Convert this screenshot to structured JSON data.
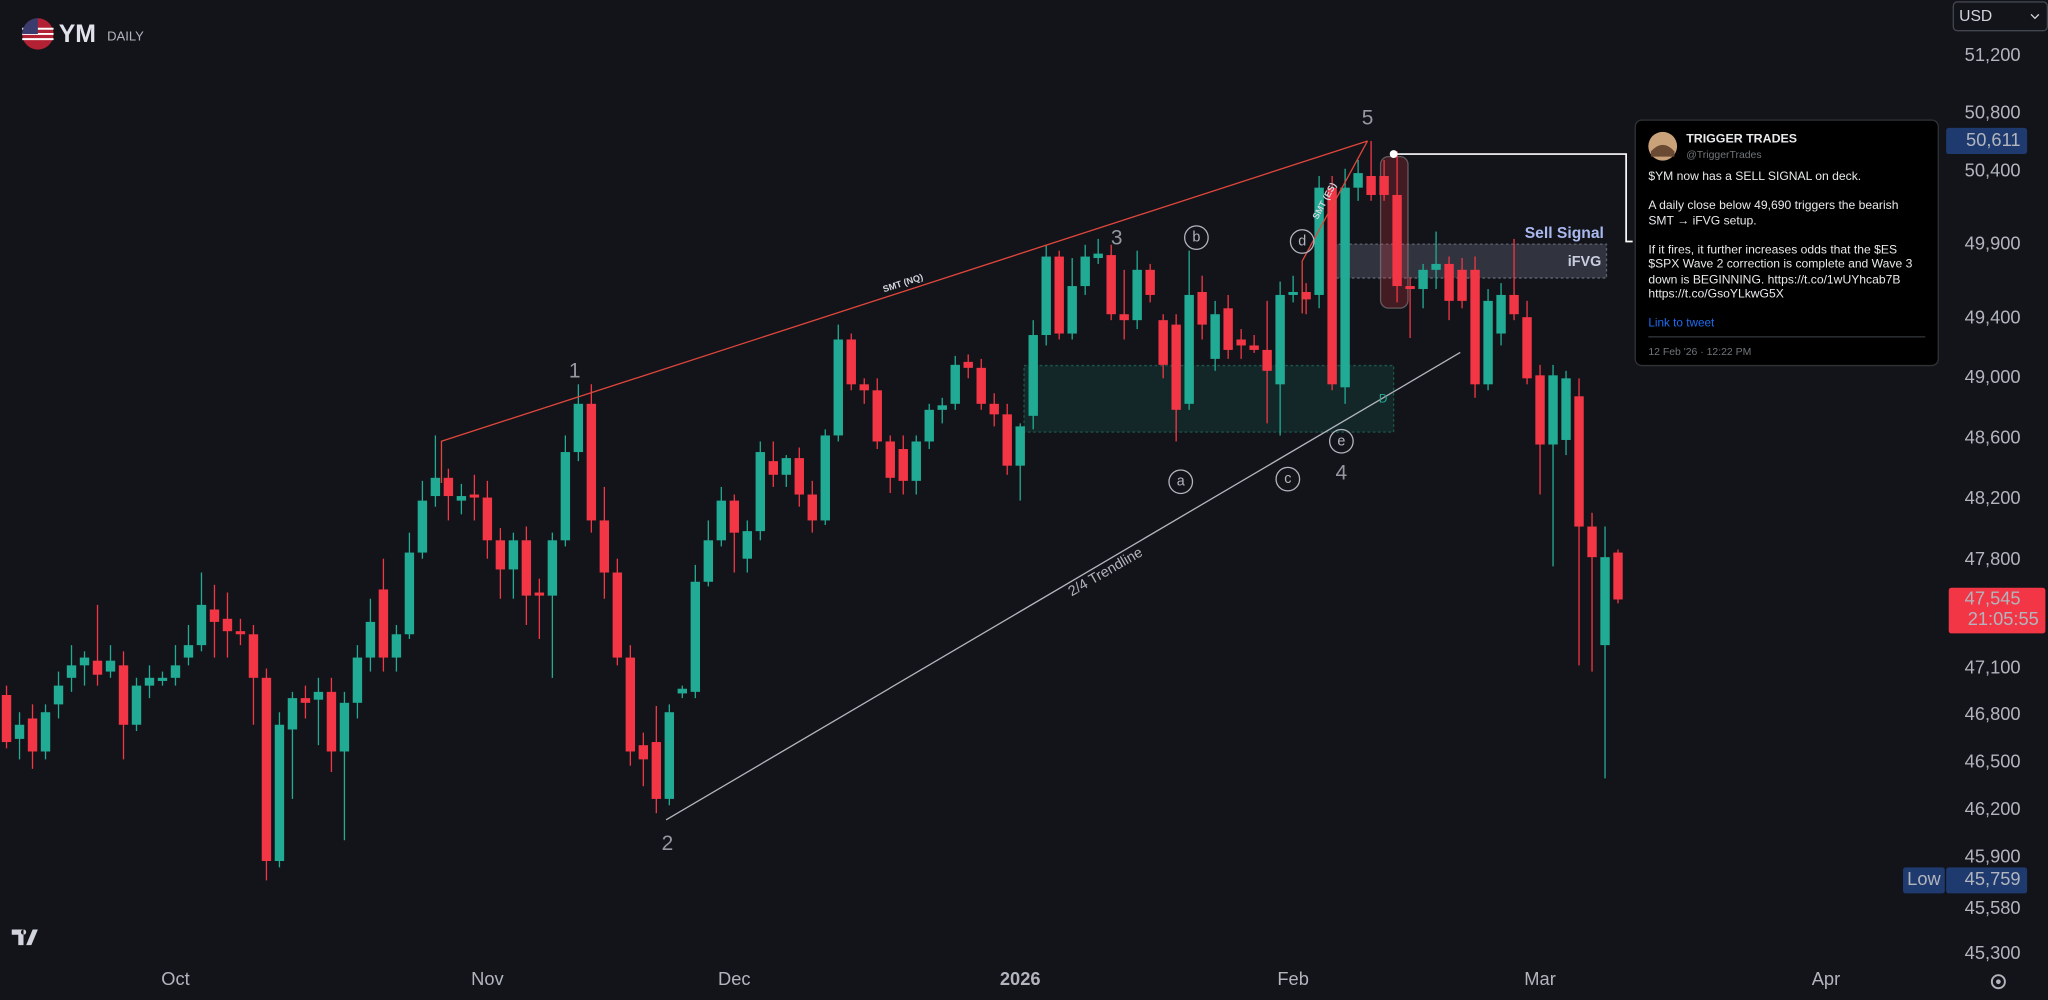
{
  "header": {
    "symbol": "YM",
    "interval": "DAILY",
    "currency": "USD"
  },
  "chart_data": {
    "type": "candlestick",
    "open": [
      46930,
      46650,
      46780,
      46570,
      46870,
      47040,
      47120,
      47150,
      47080,
      47120,
      46740,
      46990,
      47020,
      47040,
      47170,
      47250,
      47480,
      47420,
      47340,
      47320,
      47040,
      45880,
      46710,
      46910,
      46900,
      46950,
      46570,
      46880,
      47170,
      47610,
      47170,
      47320,
      47850,
      48220,
      48340,
      48190,
      48230,
      48210,
      47930,
      47740,
      47930,
      47590,
      47570,
      47930,
      48510,
      48830,
      48060,
      47720,
      47170,
      46610,
      46630,
      46270,
      46940,
      46950,
      47660,
      47930,
      48190,
      47810,
      47990,
      48450,
      48360,
      48470,
      48230,
      48060,
      48620,
      49260,
      48960,
      48920,
      48580,
      48530,
      48320,
      48580,
      48790,
      48830,
      49110,
      49070,
      48830,
      48760,
      48420,
      48750,
      49290,
      49820,
      49300,
      49620,
      49810,
      49830,
      49430,
      49390,
      49730,
      49390,
      49360,
      48830,
      49580,
      49130,
      49470,
      49260,
      49220,
      49190,
      48960,
      49560,
      49580,
      49560,
      50290,
      48940,
      50290,
      50370,
      50370,
      50240,
      49620,
      49600,
      49730,
      49770,
      49730,
      49730,
      48960,
      49300,
      49560,
      49410,
      49020,
      48560,
      48590,
      48880,
      48020,
      47250,
      47850
    ],
    "high": [
      46990,
      46820,
      46870,
      46870,
      47080,
      47250,
      47210,
      47510,
      47250,
      47210,
      47040,
      47120,
      47080,
      47250,
      47380,
      47720,
      47640,
      47590,
      47420,
      47380,
      47100,
      46820,
      46950,
      46990,
      47040,
      47040,
      46950,
      47250,
      47550,
      47810,
      47380,
      47980,
      48320,
      48620,
      48400,
      48300,
      48360,
      48320,
      48010,
      47980,
      48020,
      47680,
      47980,
      48620,
      48960,
      48960,
      48280,
      47810,
      47250,
      46690,
      46860,
      46870,
      46990,
      47770,
      48060,
      48280,
      48230,
      48060,
      48580,
      48580,
      48490,
      48540,
      48320,
      48660,
      49360,
      49300,
      49000,
      49000,
      48620,
      48620,
      48620,
      48830,
      48870,
      49150,
      49160,
      49130,
      48900,
      48830,
      48700,
      49390,
      49900,
      49860,
      49810,
      49900,
      49940,
      49900,
      49730,
      49860,
      49770,
      49430,
      49430,
      49860,
      49690,
      49520,
      49560,
      49330,
      49290,
      49520,
      49650,
      49690,
      49640,
      50370,
      50370,
      50420,
      50480,
      50611,
      50480,
      50540,
      49680,
      49770,
      49990,
      49820,
      49810,
      49820,
      49600,
      49640,
      49940,
      49520,
      49090,
      49090,
      49050,
      49000,
      48110,
      48020,
      47870
    ],
    "low": [
      46590,
      46520,
      46460,
      46520,
      46780,
      46950,
      46990,
      46990,
      47040,
      46520,
      46700,
      46910,
      46990,
      46990,
      47120,
      47210,
      47170,
      47170,
      47250,
      46740,
      45759,
      45840,
      46270,
      46780,
      46610,
      46440,
      46010,
      46780,
      47080,
      47080,
      47080,
      47290,
      47810,
      48150,
      48060,
      48100,
      48060,
      47810,
      47550,
      47550,
      47380,
      47290,
      47040,
      47890,
      48450,
      47980,
      47550,
      47120,
      46480,
      46350,
      46180,
      46230,
      46910,
      46910,
      47630,
      47890,
      47720,
      47720,
      47930,
      48280,
      48280,
      48150,
      47980,
      48030,
      48580,
      48920,
      48830,
      48530,
      48240,
      48230,
      48230,
      48530,
      48700,
      48790,
      49000,
      48790,
      48680,
      48360,
      48190,
      48660,
      49220,
      49260,
      49260,
      49560,
      49770,
      49390,
      49260,
      49330,
      49510,
      49000,
      48580,
      48790,
      49260,
      49050,
      49130,
      49130,
      49170,
      48700,
      48620,
      49510,
      49430,
      49470,
      48920,
      48830,
      50200,
      50200,
      50200,
      49510,
      49270,
      49470,
      49600,
      49390,
      49470,
      48870,
      48920,
      49220,
      49390,
      48960,
      48230,
      47760,
      48490,
      47120,
      47080,
      46400,
      47520
    ],
    "close": [
      46630,
      46740,
      46570,
      46820,
      46990,
      47120,
      47170,
      47060,
      47150,
      46740,
      46990,
      47040,
      47040,
      47120,
      47250,
      47510,
      47400,
      47340,
      47320,
      47040,
      45880,
      46740,
      46910,
      46880,
      46950,
      46570,
      46880,
      47170,
      47400,
      47170,
      47320,
      47850,
      48190,
      48340,
      48220,
      48220,
      48210,
      47930,
      47740,
      47930,
      47570,
      47570,
      47930,
      48510,
      48830,
      48060,
      47720,
      47170,
      46570,
      46520,
      46270,
      46820,
      46970,
      47660,
      47930,
      48190,
      47980,
      47990,
      48510,
      48360,
      48470,
      48230,
      48060,
      48620,
      49260,
      48960,
      48920,
      48580,
      48340,
      48320,
      48580,
      48790,
      48820,
      49090,
      49070,
      48830,
      48760,
      48420,
      48680,
      49290,
      49820,
      49300,
      49620,
      49820,
      49840,
      49430,
      49390,
      49730,
      49560,
      49090,
      48790,
      49560,
      49360,
      49430,
      49190,
      49220,
      49190,
      49050,
      49560,
      49580,
      49530,
      50290,
      48960,
      50290,
      50390,
      50240,
      50240,
      49620,
      49600,
      49730,
      49770,
      49520,
      49520,
      48960,
      49520,
      49560,
      49430,
      49000,
      48560,
      49020,
      49000,
      48020,
      47820,
      47820,
      47545
    ],
    "up_color": "#22ab94",
    "down_color": "#f23645",
    "log_scale": true,
    "grid": false,
    "ylim": [
      45268,
      51593
    ],
    "yticks": [
      {
        "value": 51200,
        "label": "51,200"
      },
      {
        "value": 50800,
        "label": "50,800"
      },
      {
        "value": 50400,
        "label": "50,400"
      },
      {
        "value": 49900,
        "label": "49,900"
      },
      {
        "value": 49400,
        "label": "49,400"
      },
      {
        "value": 49000,
        "label": "49,000"
      },
      {
        "value": 48600,
        "label": "48,600"
      },
      {
        "value": 48200,
        "label": "48,200"
      },
      {
        "value": 47800,
        "label": "47,800"
      },
      {
        "value": 47100,
        "label": "47,100"
      },
      {
        "value": 46800,
        "label": "46,800"
      },
      {
        "value": 46500,
        "label": "46,500"
      },
      {
        "value": 46200,
        "label": "46,200"
      },
      {
        "value": 45900,
        "label": "45,900"
      },
      {
        "value": 45580,
        "label": "45,580"
      },
      {
        "value": 45300,
        "label": "45,300"
      }
    ],
    "xticks": [
      {
        "value": 13,
        "label": "Oct"
      },
      {
        "value": 37,
        "label": "Nov"
      },
      {
        "value": 56,
        "label": "Dec"
      },
      {
        "value": 78,
        "label": "2026"
      },
      {
        "value": 99,
        "label": "Feb"
      },
      {
        "value": 118,
        "label": "Mar"
      },
      {
        "value": 140,
        "label": "Apr"
      }
    ],
    "price_markers": [
      {
        "value": 50611,
        "label": "50,611",
        "color": "#1e3a6e"
      },
      {
        "value": 47545,
        "label": "47,545",
        "sublabel": "21:05:55",
        "color": "#f23645"
      },
      {
        "value": 45759,
        "label": "45,759",
        "tag": "Low",
        "color": "#1e3a6e"
      }
    ],
    "annotations": {
      "waves": [
        "1",
        "2",
        "3",
        "4",
        "5"
      ],
      "subwaves": [
        "a",
        "b",
        "c",
        "d",
        "e"
      ],
      "smt_nq": "SMT (NQ)",
      "smt_es": "SMT (ES)",
      "trendline": "2/4 Trendline",
      "sell_signal": "Sell Signal",
      "ifvg": "iFVG",
      "zone": "D"
    }
  },
  "tweet": {
    "author": "TRIGGER TRADES",
    "handle": "@TriggerTrades",
    "paragraphs": [
      [
        "$YM now has a SELL SIGNAL on deck."
      ],
      [
        "A daily close below 49,690 triggers the bearish",
        "SMT → iFVG setup."
      ],
      [
        "If it fires, it further increases odds that the $ES",
        "$SPX Wave 2 correction is complete and Wave 3",
        "down is BEGINNING. https://t.co/1wUYhcab7B",
        "https://t.co/GsoYLkwG5X"
      ]
    ],
    "link": "Link to tweet",
    "timestamp": "12 Feb '26 · 12:22 PM"
  }
}
